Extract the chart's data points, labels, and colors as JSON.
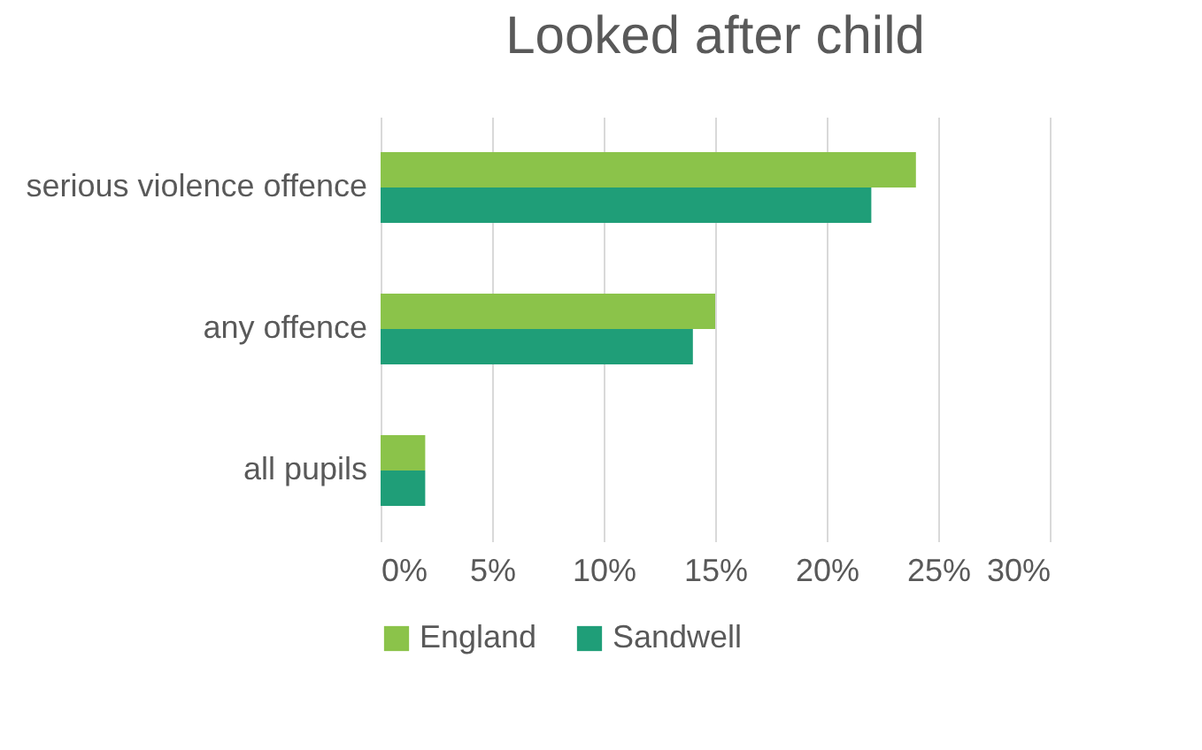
{
  "chart_data": {
    "type": "bar",
    "orientation": "horizontal",
    "title": "Looked after child",
    "categories": [
      "serious violence offence",
      "any offence",
      "all pupils"
    ],
    "series": [
      {
        "name": "England",
        "color": "#8bc34a",
        "values": [
          24,
          15,
          2
        ]
      },
      {
        "name": "Sandwell",
        "color": "#1f9e78",
        "values": [
          22,
          14,
          2
        ]
      }
    ],
    "xlim": [
      0,
      30
    ],
    "xticks": [
      {
        "value": 0,
        "label": "0%"
      },
      {
        "value": 5,
        "label": "5%"
      },
      {
        "value": 10,
        "label": "10%"
      },
      {
        "value": 15,
        "label": "15%"
      },
      {
        "value": 20,
        "label": "20%"
      },
      {
        "value": 25,
        "label": "25%"
      },
      {
        "value": 30,
        "label": "30%"
      }
    ],
    "grid": "x",
    "legend": "bottom"
  }
}
